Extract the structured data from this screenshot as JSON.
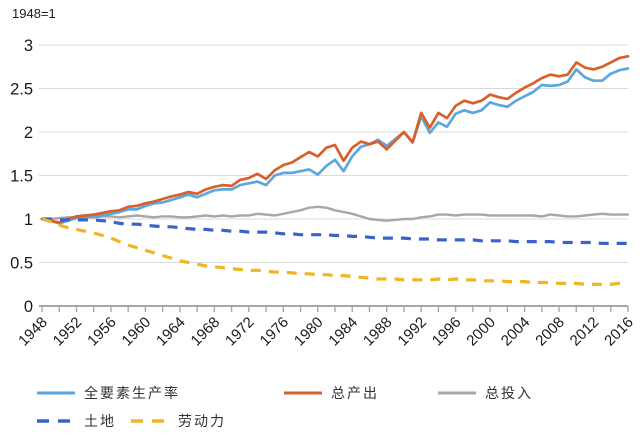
{
  "note": "1948=1",
  "background": "#ffffff",
  "axis": {
    "grid_color": "#d9d9d9",
    "axis_color": "#a6a6a6",
    "label_color": "#1a1a1a"
  },
  "chart_data": {
    "type": "line",
    "title": "",
    "xlabel": "",
    "ylabel": "",
    "note": "1948=1",
    "grid": "horizontal",
    "legend_position": "bottom",
    "ylim": [
      0,
      3
    ],
    "yticks": [
      0,
      0.5,
      1,
      1.5,
      2,
      2.5,
      3
    ],
    "x_tick_minor_step": 2,
    "x_label_step": 4,
    "x": [
      1948,
      1949,
      1950,
      1951,
      1952,
      1953,
      1954,
      1955,
      1956,
      1957,
      1958,
      1959,
      1960,
      1961,
      1962,
      1963,
      1964,
      1965,
      1966,
      1967,
      1968,
      1969,
      1970,
      1971,
      1972,
      1973,
      1974,
      1975,
      1976,
      1977,
      1978,
      1979,
      1980,
      1981,
      1982,
      1983,
      1984,
      1985,
      1986,
      1987,
      1988,
      1989,
      1990,
      1991,
      1992,
      1993,
      1994,
      1995,
      1996,
      1997,
      1998,
      1999,
      2000,
      2001,
      2002,
      2003,
      2004,
      2005,
      2006,
      2007,
      2008,
      2009,
      2010,
      2011,
      2012,
      2013,
      2014,
      2015,
      2016
    ],
    "x_tick_labels": [
      1948,
      1952,
      1956,
      1960,
      1964,
      1968,
      1972,
      1976,
      1980,
      1984,
      1988,
      1992,
      1996,
      2000,
      2004,
      2008,
      2012,
      2016
    ],
    "series": [
      {
        "key": "tfp",
        "name": "全要素生产率",
        "color": "#5BA7DE",
        "style": "solid",
        "values": [
          1.0,
          0.98,
          0.95,
          0.98,
          1.01,
          1.02,
          1.03,
          1.04,
          1.06,
          1.08,
          1.11,
          1.11,
          1.15,
          1.18,
          1.19,
          1.22,
          1.25,
          1.28,
          1.25,
          1.29,
          1.33,
          1.34,
          1.34,
          1.39,
          1.41,
          1.43,
          1.39,
          1.5,
          1.53,
          1.53,
          1.55,
          1.57,
          1.51,
          1.61,
          1.68,
          1.55,
          1.72,
          1.83,
          1.86,
          1.91,
          1.84,
          1.92,
          2.0,
          1.88,
          2.18,
          1.99,
          2.11,
          2.06,
          2.21,
          2.25,
          2.22,
          2.25,
          2.34,
          2.31,
          2.29,
          2.36,
          2.41,
          2.46,
          2.54,
          2.53,
          2.54,
          2.58,
          2.72,
          2.63,
          2.59,
          2.59,
          2.67,
          2.71,
          2.73
        ]
      },
      {
        "key": "output",
        "name": "总产出",
        "color": "#D95F2B",
        "style": "solid",
        "values": [
          1.0,
          0.98,
          0.96,
          1.0,
          1.03,
          1.04,
          1.05,
          1.07,
          1.09,
          1.1,
          1.14,
          1.15,
          1.18,
          1.2,
          1.23,
          1.26,
          1.28,
          1.31,
          1.29,
          1.34,
          1.37,
          1.39,
          1.38,
          1.45,
          1.47,
          1.52,
          1.46,
          1.56,
          1.62,
          1.65,
          1.71,
          1.77,
          1.72,
          1.82,
          1.85,
          1.67,
          1.82,
          1.89,
          1.86,
          1.89,
          1.8,
          1.9,
          2.0,
          1.88,
          2.22,
          2.05,
          2.22,
          2.16,
          2.3,
          2.36,
          2.33,
          2.36,
          2.43,
          2.4,
          2.38,
          2.45,
          2.51,
          2.56,
          2.62,
          2.66,
          2.64,
          2.66,
          2.8,
          2.74,
          2.72,
          2.75,
          2.8,
          2.85,
          2.87
        ]
      },
      {
        "key": "input",
        "name": "总投入",
        "color": "#A7A7A7",
        "style": "solid",
        "values": [
          1.0,
          1.0,
          1.01,
          1.02,
          1.02,
          1.02,
          1.02,
          1.03,
          1.03,
          1.02,
          1.03,
          1.04,
          1.03,
          1.02,
          1.03,
          1.03,
          1.02,
          1.02,
          1.03,
          1.04,
          1.03,
          1.04,
          1.03,
          1.04,
          1.04,
          1.06,
          1.05,
          1.04,
          1.06,
          1.08,
          1.1,
          1.13,
          1.14,
          1.13,
          1.1,
          1.08,
          1.06,
          1.03,
          1.0,
          0.99,
          0.98,
          0.99,
          1.0,
          1.0,
          1.02,
          1.03,
          1.05,
          1.05,
          1.04,
          1.05,
          1.05,
          1.05,
          1.04,
          1.04,
          1.04,
          1.04,
          1.04,
          1.04,
          1.03,
          1.05,
          1.04,
          1.03,
          1.03,
          1.04,
          1.05,
          1.06,
          1.05,
          1.05,
          1.05
        ]
      },
      {
        "key": "land",
        "name": "土地",
        "color": "#3A63C9",
        "style": "dashed",
        "values": [
          1.0,
          1.0,
          0.99,
          0.99,
          0.99,
          0.99,
          0.99,
          0.98,
          0.97,
          0.95,
          0.94,
          0.94,
          0.93,
          0.92,
          0.91,
          0.91,
          0.9,
          0.89,
          0.88,
          0.88,
          0.87,
          0.87,
          0.86,
          0.86,
          0.85,
          0.85,
          0.85,
          0.84,
          0.83,
          0.83,
          0.82,
          0.82,
          0.82,
          0.82,
          0.81,
          0.81,
          0.8,
          0.8,
          0.79,
          0.78,
          0.78,
          0.78,
          0.78,
          0.77,
          0.77,
          0.77,
          0.76,
          0.76,
          0.76,
          0.76,
          0.76,
          0.75,
          0.75,
          0.75,
          0.75,
          0.74,
          0.74,
          0.74,
          0.74,
          0.74,
          0.73,
          0.73,
          0.73,
          0.73,
          0.73,
          0.72,
          0.72,
          0.72,
          0.72
        ]
      },
      {
        "key": "labor",
        "name": "劳动力",
        "color": "#F0B622",
        "style": "dashed",
        "values": [
          1.0,
          0.97,
          0.93,
          0.9,
          0.88,
          0.86,
          0.84,
          0.81,
          0.78,
          0.74,
          0.7,
          0.67,
          0.64,
          0.61,
          0.58,
          0.55,
          0.52,
          0.5,
          0.48,
          0.46,
          0.45,
          0.44,
          0.43,
          0.42,
          0.41,
          0.41,
          0.4,
          0.39,
          0.39,
          0.38,
          0.37,
          0.37,
          0.36,
          0.36,
          0.35,
          0.35,
          0.34,
          0.33,
          0.32,
          0.31,
          0.31,
          0.31,
          0.3,
          0.3,
          0.3,
          0.3,
          0.31,
          0.3,
          0.31,
          0.3,
          0.3,
          0.29,
          0.29,
          0.29,
          0.28,
          0.28,
          0.28,
          0.27,
          0.27,
          0.27,
          0.26,
          0.26,
          0.26,
          0.25,
          0.25,
          0.25,
          0.25,
          0.26,
          0.26
        ]
      }
    ]
  }
}
